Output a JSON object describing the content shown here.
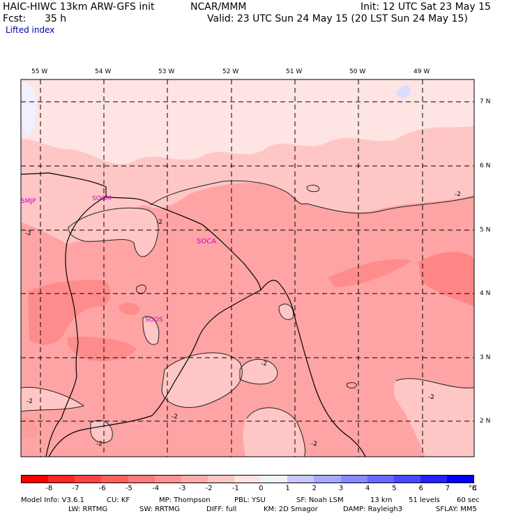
{
  "header": {
    "model": "HAIC-HIWC 13km ARW-GFS init",
    "org": "NCAR/MMM",
    "init": "Init: 12 UTC Sat 23 May 15",
    "fcst_label": "Fcst:",
    "fcst_value": "35 h",
    "valid": "Valid: 23 UTC Sun 24 May 15 (20 LST Sun 24 May 15)",
    "field": "Lifted index"
  },
  "map": {
    "lon_labels": [
      "55 W",
      "54 W",
      "53 W",
      "52 W",
      "51 W",
      "50 W",
      "49 W"
    ],
    "lat_labels": [
      "7 N",
      "6 N",
      "5 N",
      "4 N",
      "3 N",
      "2 N"
    ],
    "stations": [
      "SMJP",
      "SOGM",
      "SOCA",
      "SOOS"
    ],
    "contour_labels": [
      "-2",
      "-2",
      "-2",
      "-2",
      "-2",
      "-2",
      "-2",
      "-2"
    ]
  },
  "colorbar": {
    "ticks": [
      "-8",
      "-7",
      "-6",
      "-5",
      "-4",
      "-3",
      "-2",
      "-1",
      "0",
      "1",
      "2",
      "3",
      "4",
      "5",
      "6",
      "7",
      "8"
    ],
    "unit": "°C",
    "colors": [
      "#ff0000",
      "#ff2626",
      "#ff4444",
      "#ff5f5f",
      "#ff7a7a",
      "#ff9393",
      "#ffabab",
      "#ffc6c6",
      "#ffe2e2",
      "#f2f2ff",
      "#c8c8ff",
      "#a8a8ff",
      "#8888ff",
      "#6868ff",
      "#4848ff",
      "#2222ff",
      "#0000ff"
    ]
  },
  "footer": {
    "line1": [
      "Model Info: V3.6.1",
      "CU: KF",
      "MP: Thompson",
      "PBL: YSU",
      "SF: Noah LSM",
      "13 km",
      "51 levels",
      "60 sec"
    ],
    "line2": [
      "LW: RRTMG",
      "SW: RRTMG",
      "DIFF: full",
      "KM: 2D Smagor",
      "DAMP: Rayleigh3",
      "SFLAY: MM5"
    ]
  }
}
